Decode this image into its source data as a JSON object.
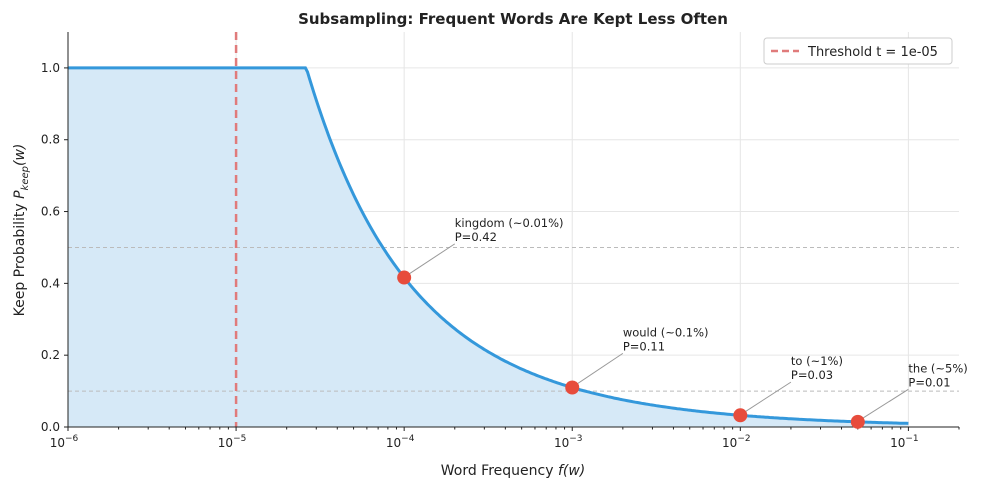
{
  "chart_data": {
    "type": "line",
    "title": "Subsampling: Frequent Words Are Kept Less Often",
    "xlabel": "Word Frequency f(w)",
    "xlabel_main": "Word Frequency ",
    "xlabel_var": "f(w)",
    "ylabel_main": "Keep Probability ",
    "ylabel_var": "P",
    "ylabel_sub": "keep",
    "ylabel_arg": "(w)",
    "xscale": "log",
    "xlim": [
      1e-06,
      0.2
    ],
    "ylim": [
      0,
      1.1
    ],
    "grid": true,
    "x_ticks": [
      {
        "base": "10",
        "exp": "−6",
        "v": 1e-06
      },
      {
        "base": "10",
        "exp": "−5",
        "v": 1e-05
      },
      {
        "base": "10",
        "exp": "−4",
        "v": 0.0001
      },
      {
        "base": "10",
        "exp": "−3",
        "v": 0.001
      },
      {
        "base": "10",
        "exp": "−2",
        "v": 0.01
      },
      {
        "base": "10",
        "exp": "−1",
        "v": 0.1
      }
    ],
    "y_ticks": [
      "0.0",
      "0.2",
      "0.4",
      "0.6",
      "0.8",
      "1.0"
    ],
    "threshold": 1e-05,
    "curve": {
      "formula": "min(1, sqrt(t/f) + t/f)",
      "x_range": [
        1e-06,
        0.1
      ],
      "color": "#3498db",
      "fill_color": "#d6e9f7"
    },
    "reference_lines": [
      0.5,
      0.1
    ],
    "legend": {
      "placement": "upper right",
      "entries": [
        {
          "label": "Threshold t = 1e-05",
          "color": "#e07b7b",
          "style": "dashed"
        }
      ]
    },
    "points": [
      {
        "word": "kingdom",
        "x": 0.0001,
        "y": 0.42,
        "label1": "kingdom (~0.01%)",
        "label2": "P=0.42",
        "text_x": 0.0002,
        "text_y": 0.51
      },
      {
        "word": "would",
        "x": 0.001,
        "y": 0.11,
        "label1": "would (~0.1%)",
        "label2": "P=0.11",
        "text_x": 0.002,
        "text_y": 0.205
      },
      {
        "word": "to",
        "x": 0.01,
        "y": 0.03,
        "label1": "to (~1%)",
        "label2": "P=0.03",
        "text_x": 0.02,
        "text_y": 0.125
      },
      {
        "word": "the",
        "x": 0.05,
        "y": 0.01,
        "label1": "the (~5%)",
        "label2": "P=0.01",
        "text_x": 0.1,
        "text_y": 0.105
      }
    ],
    "point_color": "#e74c3c"
  }
}
